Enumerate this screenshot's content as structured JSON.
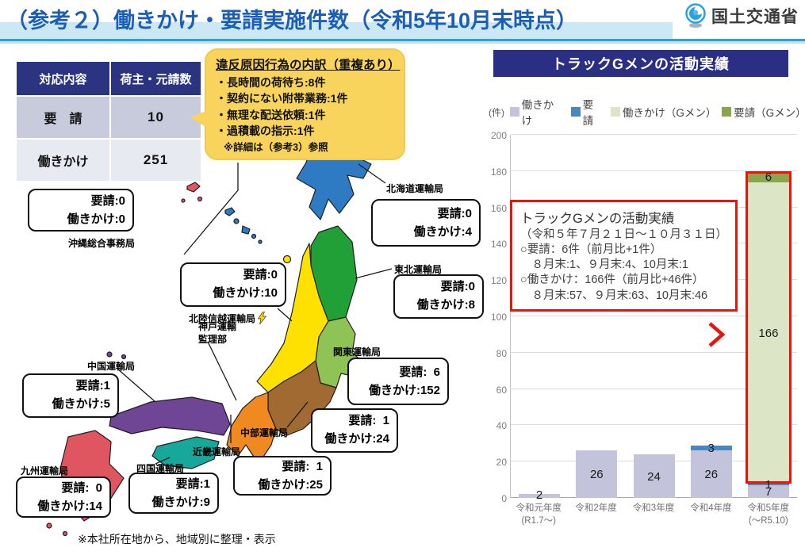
{
  "header": {
    "title": "（参考２）働きかけ・要請実施件数（令和5年10月末時点）",
    "agency": "国土交通省"
  },
  "summary_table": {
    "col1_header": "対応内容",
    "col2_header": "荷主・元請数",
    "rows": [
      {
        "label": "要　請",
        "value": "10"
      },
      {
        "label": "働きかけ",
        "value": "251"
      }
    ]
  },
  "violation_callout": {
    "title": "違反原因行為の内訳（重複あり）",
    "items": [
      "・長時間の荷待ち:8件",
      "・契約にない附帯業務:1件",
      "・無理な配送依頼:1件",
      "・過積載の指示:1件"
    ],
    "note": "※詳細は（参考3）参照"
  },
  "map": {
    "offices": [
      {
        "name": "沖縄総合事務局",
        "line1": "要請:0",
        "line2": "働きかけ:0"
      },
      {
        "name": "北海道運輸局",
        "line1": "要請:0",
        "line2": "働きかけ:4"
      },
      {
        "name": "北陸信越運輸局",
        "line1": "要請:0",
        "line2": "働きかけ:10"
      },
      {
        "name": "東北運輸局",
        "line1": "要請:0",
        "line2": "働きかけ:8"
      },
      {
        "name": "関東運輸局",
        "line1": "要請:  6",
        "line2": "働きかけ:152"
      },
      {
        "name": "中国運輸局",
        "line1": "要請:1",
        "line2": "働きかけ:5"
      },
      {
        "name": "中部運輸局",
        "line1": "要請:  1",
        "line2": "働きかけ:24"
      },
      {
        "name": "近畿運輸局",
        "line1": "要請:  1",
        "line2": "働きかけ:25"
      },
      {
        "name": "四国運輸局",
        "line1": "要請:1",
        "line2": "働きかけ:9"
      },
      {
        "name": "九州運輸局",
        "line1": "要請:  0",
        "line2": "働きかけ:14"
      }
    ],
    "kobe_label_line1": "神戸運輸",
    "kobe_label_line2": "監理部",
    "footnote": "※本社所在地から、地域別に整理・表示"
  },
  "chart": {
    "title": "トラックGメンの活動実績"
  },
  "chart_data": {
    "type": "stacked-bar",
    "title": "トラックGメンの活動実績",
    "unit_label": "(件)",
    "ylim": [
      0,
      200
    ],
    "ytick_step": 20,
    "grid": true,
    "legend_position": "top",
    "categories": [
      {
        "label": "令和元年度",
        "sublabel": "(R1.7～)"
      },
      {
        "label": "令和2年度",
        "sublabel": ""
      },
      {
        "label": "令和3年度",
        "sublabel": ""
      },
      {
        "label": "令和4年度",
        "sublabel": ""
      },
      {
        "label": "令和5年度",
        "sublabel": "(～R5.10)"
      }
    ],
    "series": [
      {
        "name": "働きかけ",
        "color": "#c3c3db",
        "values": [
          2,
          26,
          24,
          26,
          7
        ]
      },
      {
        "name": "要請",
        "color": "#4b86be",
        "values": [
          0,
          0,
          0,
          3,
          1
        ]
      },
      {
        "name": "働きかけ（Gメン）",
        "color": "#dce6c6",
        "values": [
          0,
          0,
          0,
          0,
          166
        ]
      },
      {
        "name": "要請（Gメン）",
        "color": "#8aa64c",
        "values": [
          0,
          0,
          0,
          0,
          6
        ]
      }
    ],
    "highlight": {
      "category_index": 4,
      "series_from": 2,
      "border_color": "#e8150e"
    }
  },
  "activity_callout": {
    "title": "トラックGメンの活動実績",
    "period": "（令和５年７月２１日～１０月３１日）",
    "lines": [
      "○要請：6件（前月比+1件）",
      "　８月末:1、９月末:4、10月末:1",
      "○働きかけ：166件（前月比+46件）",
      "　８月末:57、９月末:63、10月末:46"
    ]
  }
}
